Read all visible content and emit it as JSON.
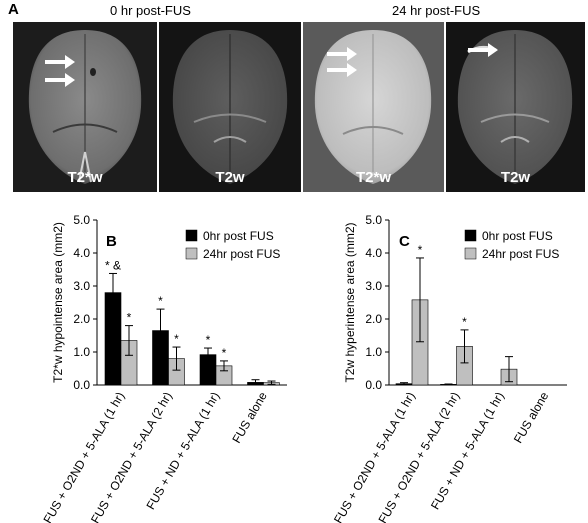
{
  "panel_a": {
    "letter": "A",
    "header_0hr": "0 hr post-FUS",
    "header_24hr": "24 hr post-FUS",
    "images": [
      {
        "label": "T2*w"
      },
      {
        "label": "T2w"
      },
      {
        "label": "T2*w"
      },
      {
        "label": "T2w"
      }
    ]
  },
  "colors": {
    "series_0hr": "#000000",
    "series_24hr": "#bfbfbf",
    "error_bar": "#000000"
  },
  "chart_data": [
    {
      "type": "bar",
      "panel": "B",
      "ylabel": "T2*w hypointense area (mm2)",
      "xlabel": "",
      "ylim": [
        0,
        5
      ],
      "yticks": [
        "0.0",
        "1.0",
        "2.0",
        "3.0",
        "4.0",
        "5.0"
      ],
      "categories": [
        "FUS + O2ND + 5-ALA (1 hr)",
        "FUS + O2ND + 5-ALA (2 hr)",
        "FUS + ND + 5-ALA (1 hr)",
        "FUS alone"
      ],
      "series": [
        {
          "name": "0hr post FUS",
          "values": [
            2.8,
            1.65,
            0.92,
            0.08
          ],
          "errors": [
            0.58,
            0.65,
            0.2,
            0.08
          ],
          "marks": [
            "* &",
            "*",
            "*",
            ""
          ]
        },
        {
          "name": "24hr post FUS",
          "values": [
            1.35,
            0.8,
            0.58,
            0.07
          ],
          "errors": [
            0.45,
            0.35,
            0.15,
            0.05
          ],
          "marks": [
            "*",
            "*",
            "*",
            ""
          ]
        }
      ],
      "legend": "top-right",
      "grid": false
    },
    {
      "type": "bar",
      "panel": "C",
      "ylabel": "T2w hyperintense area (mm2)",
      "xlabel": "",
      "ylim": [
        0,
        5
      ],
      "yticks": [
        "0.0",
        "1.0",
        "2.0",
        "3.0",
        "4.0",
        "5.0"
      ],
      "categories": [
        "FUS + O2ND + 5-ALA (1 hr)",
        "FUS + O2ND + 5-ALA (2 hr)",
        "FUS + ND + 5-ALA (1 hr)",
        "FUS alone"
      ],
      "series": [
        {
          "name": "0hr post FUS",
          "values": [
            0.04,
            0.02,
            0,
            0
          ],
          "errors": [
            0.03,
            0.01,
            0,
            0
          ],
          "marks": [
            "",
            "",
            "",
            ""
          ]
        },
        {
          "name": "24hr post FUS",
          "values": [
            2.58,
            1.17,
            0.48,
            0
          ],
          "errors": [
            1.27,
            0.5,
            0.38,
            0
          ],
          "marks": [
            "*",
            "*",
            "",
            ""
          ]
        }
      ],
      "legend": "top-right",
      "grid": false
    }
  ]
}
